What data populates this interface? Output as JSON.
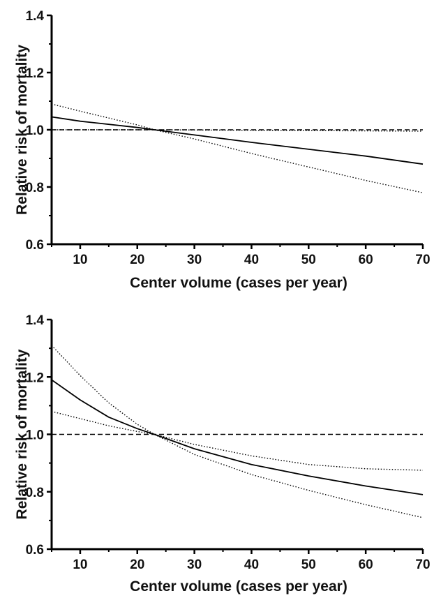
{
  "chart_data": [
    {
      "type": "line",
      "title": "",
      "xlabel": "Center volume (cases per year)",
      "ylabel": "Relative risk of mortality",
      "xlim": [
        5,
        70
      ],
      "ylim": [
        0.6,
        1.4
      ],
      "x_ticks": [
        "10",
        "20",
        "30",
        "40",
        "50",
        "60",
        "70"
      ],
      "y_ticks": [
        "0.6",
        "0.8",
        "1.0",
        "1.2",
        "1.4"
      ],
      "grid": false,
      "legend": "none",
      "series": [
        {
          "style": "solid",
          "x": [
            5,
            10,
            20,
            23,
            30,
            40,
            50,
            60,
            70
          ],
          "y": [
            1.045,
            1.03,
            1.008,
            1.0,
            0.982,
            0.956,
            0.932,
            0.908,
            0.88
          ]
        },
        {
          "style": "dotted",
          "x": [
            5,
            10,
            20,
            23,
            30,
            40,
            50,
            60,
            70
          ],
          "y": [
            1.09,
            1.065,
            1.017,
            1.0,
            0.968,
            0.917,
            0.87,
            0.823,
            0.78
          ]
        },
        {
          "style": "dotted",
          "x": [
            5,
            23,
            70
          ],
          "y": [
            1.0,
            1.0,
            0.995
          ]
        },
        {
          "style": "dashed",
          "x": [
            5,
            70
          ],
          "y": [
            1.0,
            1.0
          ]
        }
      ]
    },
    {
      "type": "line",
      "title": "",
      "xlabel": "Center volume (cases per year)",
      "ylabel": "Relative risk of mortality",
      "xlim": [
        5,
        70
      ],
      "ylim": [
        0.6,
        1.4
      ],
      "x_ticks": [
        "10",
        "20",
        "30",
        "40",
        "50",
        "60",
        "70"
      ],
      "y_ticks": [
        "0.6",
        "0.8",
        "1.0",
        "1.2",
        "1.4"
      ],
      "grid": false,
      "legend": "none",
      "series": [
        {
          "style": "solid",
          "x": [
            5,
            10,
            15,
            20,
            23,
            30,
            40,
            50,
            60,
            70
          ],
          "y": [
            1.19,
            1.12,
            1.06,
            1.02,
            1.0,
            0.95,
            0.895,
            0.855,
            0.82,
            0.79
          ]
        },
        {
          "style": "dotted",
          "x": [
            5,
            10,
            15,
            20,
            23,
            30,
            40,
            50,
            60,
            70
          ],
          "y": [
            1.31,
            1.205,
            1.11,
            1.035,
            1.0,
            0.93,
            0.86,
            0.805,
            0.755,
            0.71
          ]
        },
        {
          "style": "dotted",
          "x": [
            5,
            10,
            15,
            20,
            23,
            30,
            40,
            50,
            60,
            70
          ],
          "y": [
            1.08,
            1.055,
            1.03,
            1.01,
            1.0,
            0.965,
            0.925,
            0.895,
            0.88,
            0.875
          ]
        },
        {
          "style": "dashed",
          "x": [
            5,
            70
          ],
          "y": [
            1.0,
            1.0
          ]
        }
      ]
    }
  ]
}
